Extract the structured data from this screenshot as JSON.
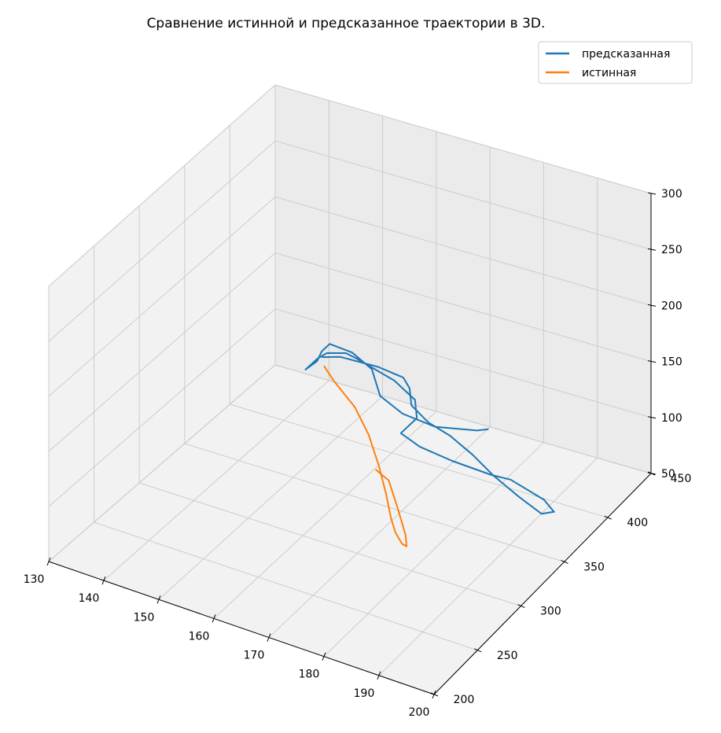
{
  "chart_data": {
    "type": "line",
    "projection": "3d",
    "title": "Сравнение истинной и предсказанное траектории в 3D.",
    "xlabel": "",
    "ylabel": "",
    "zlabel": "",
    "xlim": [
      130,
      200
    ],
    "ylim": [
      200,
      450
    ],
    "zlim": [
      50,
      300
    ],
    "x_ticks": [
      "130",
      "140",
      "150",
      "160",
      "170",
      "180",
      "190",
      "200"
    ],
    "y_ticks": [
      "200",
      "250",
      "300",
      "350",
      "400",
      "450"
    ],
    "z_ticks": [
      "50",
      "100",
      "150",
      "200",
      "250",
      "300"
    ],
    "grid": true,
    "legend_position": "top-right",
    "series": [
      {
        "name": "предсказанная",
        "color": "#1f77b4",
        "points": [
          [
            177,
            405,
            92
          ],
          [
            175,
            405,
            88
          ],
          [
            168,
            400,
            85
          ],
          [
            162,
            400,
            88
          ],
          [
            157,
            405,
            93
          ],
          [
            153,
            420,
            100
          ],
          [
            148,
            428,
            102
          ],
          [
            143,
            433,
            99
          ],
          [
            142,
            430,
            93
          ],
          [
            142,
            425,
            88
          ],
          [
            141,
            418,
            84
          ],
          [
            142,
            425,
            90
          ],
          [
            143,
            430,
            93
          ],
          [
            146,
            433,
            95
          ],
          [
            148,
            433,
            93
          ],
          [
            156,
            427,
            89
          ],
          [
            161,
            420,
            84
          ],
          [
            163,
            410,
            78
          ],
          [
            162,
            398,
            72
          ],
          [
            166,
            395,
            68
          ],
          [
            172,
            395,
            64
          ],
          [
            179,
            397,
            60
          ],
          [
            182,
            400,
            58
          ],
          [
            189,
            395,
            54
          ],
          [
            192,
            388,
            53
          ],
          [
            191,
            380,
            56
          ],
          [
            186,
            385,
            60
          ],
          [
            180,
            393,
            64
          ],
          [
            175,
            400,
            70
          ],
          [
            170,
            405,
            76
          ],
          [
            166,
            405,
            82
          ],
          [
            162,
            410,
            88
          ],
          [
            160,
            420,
            93
          ],
          [
            158,
            425,
            96
          ],
          [
            153,
            427,
            97
          ],
          [
            146,
            427,
            96
          ],
          [
            143,
            425,
            93
          ]
        ]
      },
      {
        "name": "истинная",
        "color": "#ff7f0e",
        "points": [
          [
            144,
            421,
            89
          ],
          [
            147,
            414,
            85
          ],
          [
            153,
            401,
            80
          ],
          [
            158,
            386,
            74
          ],
          [
            163,
            367,
            68
          ],
          [
            167,
            351,
            60
          ],
          [
            170,
            338,
            53
          ],
          [
            172,
            331,
            48
          ],
          [
            174,
            326,
            45
          ],
          [
            175,
            325,
            45
          ],
          [
            174,
            330,
            50
          ],
          [
            170,
            345,
            58
          ],
          [
            166,
            360,
            64
          ],
          [
            163,
            364,
            66
          ]
        ]
      }
    ]
  }
}
